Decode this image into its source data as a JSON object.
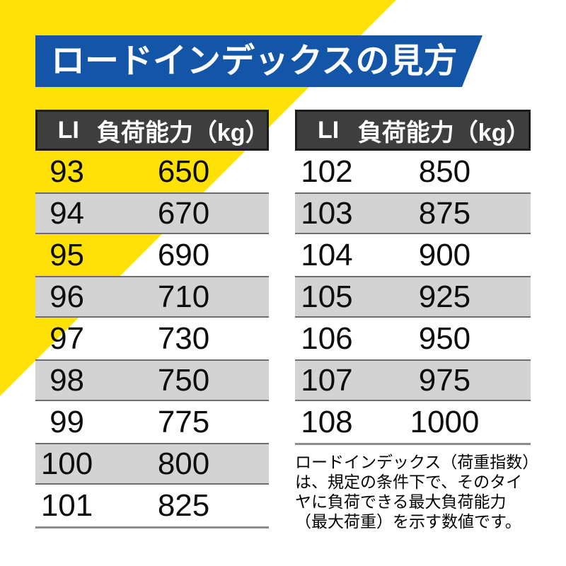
{
  "title": "ロードインデックスの見方",
  "colors": {
    "accent_yellow": "#FFE105",
    "banner_blue": "#1355A6",
    "table_header_bg": "#3E3E3E",
    "table_header_border": "#1C1C1C",
    "row_stripe_gray": "#D3D3D3",
    "row_stripe_border": "#6E6E6E",
    "table_bottom_rule": "#8C8C8C",
    "header_text": "#FFFFFF",
    "body_text": "#0D0D0D"
  },
  "tables": [
    {
      "header": {
        "li": "LI",
        "load": "負荷能力（kg）"
      },
      "rows": [
        {
          "li": "93",
          "load": "650"
        },
        {
          "li": "94",
          "load": "670"
        },
        {
          "li": "95",
          "load": "690"
        },
        {
          "li": "96",
          "load": "710"
        },
        {
          "li": "97",
          "load": "730"
        },
        {
          "li": "98",
          "load": "750"
        },
        {
          "li": "99",
          "load": "775"
        },
        {
          "li": "100",
          "load": "800"
        },
        {
          "li": "101",
          "load": "825"
        }
      ]
    },
    {
      "header": {
        "li": "LI",
        "load": "負荷能力（kg）"
      },
      "rows": [
        {
          "li": "102",
          "load": "850"
        },
        {
          "li": "103",
          "load": "875"
        },
        {
          "li": "104",
          "load": "900"
        },
        {
          "li": "105",
          "load": "925"
        },
        {
          "li": "106",
          "load": "950"
        },
        {
          "li": "107",
          "load": "975"
        },
        {
          "li": "108",
          "load": "1000"
        }
      ]
    }
  ],
  "footnote": {
    "lines": [
      "ロードインデックス（荷重指数）",
      "は、規定の条件下で、そのタイ",
      "ヤに負荷できる最大負荷能力",
      "（最大荷重）を示す数値です。"
    ]
  },
  "chart_data": {
    "type": "table",
    "title": "ロードインデックスの見方",
    "columns": [
      "LI",
      "負荷能力（kg）"
    ],
    "series": [
      {
        "name": "load-index-table-left",
        "rows": [
          [
            93,
            650
          ],
          [
            94,
            670
          ],
          [
            95,
            690
          ],
          [
            96,
            710
          ],
          [
            97,
            730
          ],
          [
            98,
            750
          ],
          [
            99,
            775
          ],
          [
            100,
            800
          ],
          [
            101,
            825
          ]
        ]
      },
      {
        "name": "load-index-table-right",
        "rows": [
          [
            102,
            850
          ],
          [
            103,
            875
          ],
          [
            104,
            900
          ],
          [
            105,
            925
          ],
          [
            106,
            950
          ],
          [
            107,
            975
          ],
          [
            108,
            1000
          ]
        ]
      }
    ],
    "note": "ロードインデックス（荷重指数）は、規定の条件下で、そのタイヤに負荷できる最大負荷能力（最大荷重）を示す数値です。"
  }
}
